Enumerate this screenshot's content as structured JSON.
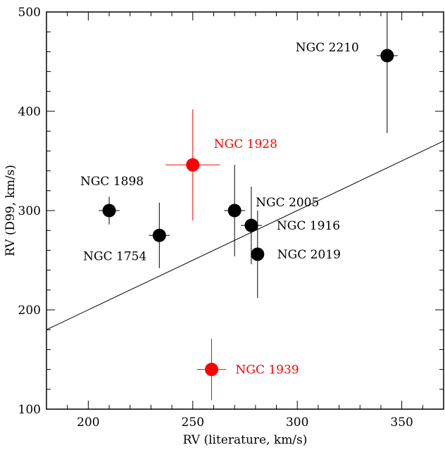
{
  "chart_data": {
    "type": "scatter",
    "title": "",
    "xlabel": "RV (literature, km/s)",
    "ylabel": "RV (D99, km/s)",
    "xlim": [
      180,
      370
    ],
    "ylim": [
      100,
      500
    ],
    "xticks": [
      200,
      250,
      300,
      350
    ],
    "yticks": [
      100,
      200,
      300,
      400,
      500
    ],
    "xtick_labels": [
      "200",
      "250",
      "300",
      "350"
    ],
    "ytick_labels": [
      "100",
      "200",
      "300",
      "400",
      "500"
    ],
    "grid": false,
    "legend": "none",
    "colors": {
      "normal": "#000000",
      "highlight": "#ff0000"
    },
    "fit_line": {
      "x": [
        180,
        370
      ],
      "y": [
        180,
        370
      ]
    },
    "points": [
      {
        "label": "NGC 2210",
        "x": 343,
        "y": 456,
        "xerr": 5,
        "yerr_up": 45,
        "yerr_down": 78,
        "color": "#000000",
        "label_anchor": "end",
        "label_dx": -40,
        "label_dy": -6
      },
      {
        "label": "NGC 1928",
        "x": 250,
        "y": 346,
        "xerr": 13,
        "yerr_up": 56,
        "yerr_down": 56,
        "color": "#ff0000",
        "label_anchor": "start",
        "label_dx": 30,
        "label_dy": -24
      },
      {
        "label": "NGC 1898",
        "x": 210,
        "y": 300,
        "xerr": 5,
        "yerr_up": 14,
        "yerr_down": 14,
        "color": "#000000",
        "label_anchor": "middle",
        "label_dx": 4,
        "label_dy": -36
      },
      {
        "label": "NGC 2005",
        "x": 270,
        "y": 300,
        "xerr": 5,
        "yerr_up": 46,
        "yerr_down": 46,
        "color": "#000000",
        "label_anchor": "start",
        "label_dx": 30,
        "label_dy": -6
      },
      {
        "label": "NGC 1916",
        "x": 278,
        "y": 285,
        "xerr": 5,
        "yerr_up": 39,
        "yerr_down": 39,
        "color": "#000000",
        "label_anchor": "start",
        "label_dx": 36,
        "label_dy": 6
      },
      {
        "label": "NGC 1754",
        "x": 234,
        "y": 275,
        "xerr": 5,
        "yerr_up": 33,
        "yerr_down": 33,
        "color": "#000000",
        "label_anchor": "end",
        "label_dx": -18,
        "label_dy": 35
      },
      {
        "label": "NGC 2019",
        "x": 281,
        "y": 256,
        "xerr": 3,
        "yerr_up": 44,
        "yerr_down": 44,
        "color": "#000000",
        "label_anchor": "start",
        "label_dx": 28,
        "label_dy": 6
      },
      {
        "label": "NGC 1939",
        "x": 259,
        "y": 140,
        "xerr": 7,
        "yerr_up": 31,
        "yerr_down": 31,
        "color": "#ff0000",
        "label_anchor": "start",
        "label_dx": 34,
        "label_dy": 6
      }
    ]
  }
}
